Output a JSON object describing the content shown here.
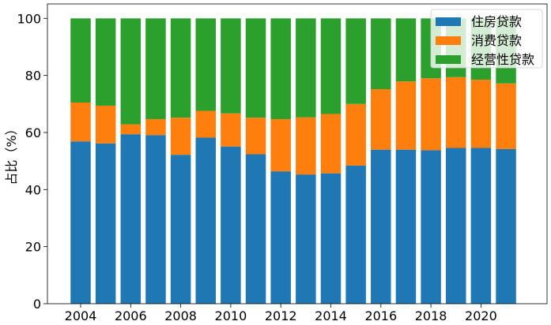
{
  "chart_data": {
    "type": "bar",
    "stacked": true,
    "title": "",
    "xlabel": "",
    "ylabel": "占比（%）",
    "ylim": [
      0,
      100
    ],
    "yticks": [
      0,
      20,
      40,
      60,
      80,
      100
    ],
    "xticks": [
      "2004",
      "2006",
      "2008",
      "2010",
      "2012",
      "2014",
      "2016",
      "2018",
      "2020"
    ],
    "categories": [
      "2004",
      "2005",
      "2006",
      "2007",
      "2008",
      "2009",
      "2010",
      "2011",
      "2012",
      "2013",
      "2014",
      "2015",
      "2016",
      "2017",
      "2018",
      "2019",
      "2020",
      "2021"
    ],
    "legend_position": "top-right",
    "grid": false,
    "series": [
      {
        "name": "住房贷款",
        "color": "#1f77b4",
        "values": [
          56.9,
          56.2,
          59.4,
          59.1,
          52.2,
          58.2,
          55.1,
          52.4,
          46.4,
          45.3,
          45.7,
          48.4,
          54.0,
          54.0,
          53.8,
          54.6,
          54.6,
          54.2
        ]
      },
      {
        "name": "消费贷款",
        "color": "#ff7f0e",
        "values": [
          13.6,
          13.2,
          3.5,
          5.6,
          13.0,
          9.4,
          11.6,
          12.8,
          18.3,
          20.0,
          20.8,
          21.6,
          21.2,
          23.9,
          25.2,
          24.8,
          23.9,
          23.0
        ]
      },
      {
        "name": "经营性贷款",
        "color": "#2ca02c",
        "values": [
          29.5,
          30.6,
          37.1,
          35.3,
          34.8,
          32.4,
          33.3,
          34.8,
          35.3,
          34.7,
          33.5,
          30.0,
          24.8,
          22.1,
          21.0,
          20.6,
          21.5,
          22.8
        ]
      }
    ]
  }
}
